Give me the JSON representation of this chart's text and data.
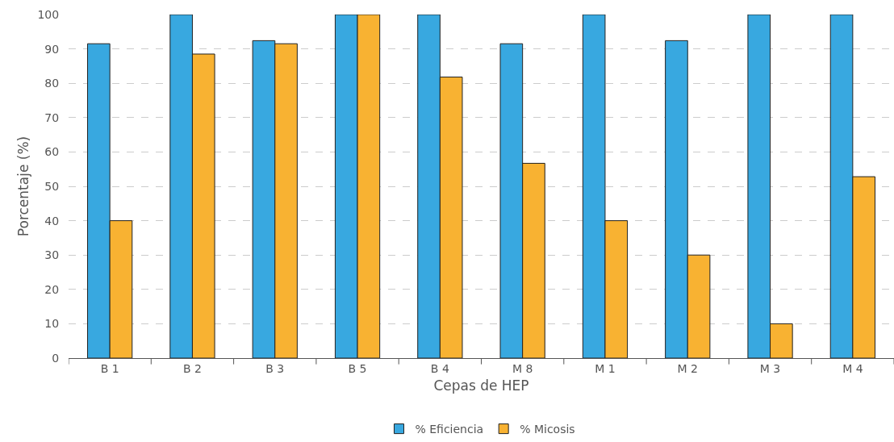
{
  "chart_data": {
    "type": "bar",
    "xlabel": "Cepas de HEP",
    "ylabel": "Porcentaje (%)",
    "categories": [
      "B 1",
      "B 2",
      "B 3",
      "B 5",
      "B 4",
      "M 8",
      "M 1",
      "M 2",
      "M 3",
      "M 4"
    ],
    "series": [
      {
        "name": "% Eficiencia",
        "color": "#38a8e0",
        "values": [
          91.5,
          100,
          92.4,
          100,
          100,
          91.5,
          100,
          92.4,
          100,
          100
        ]
      },
      {
        "name": "% Micosis",
        "color": "#f8b232",
        "values": [
          40,
          88.5,
          91.5,
          100,
          81.8,
          56.7,
          40,
          30,
          10,
          52.8
        ]
      }
    ],
    "ylim": [
      0,
      100
    ],
    "yticks": [
      0,
      10,
      20,
      30,
      40,
      50,
      60,
      70,
      80,
      90,
      100
    ],
    "grid": "y",
    "legend": "bottom"
  }
}
